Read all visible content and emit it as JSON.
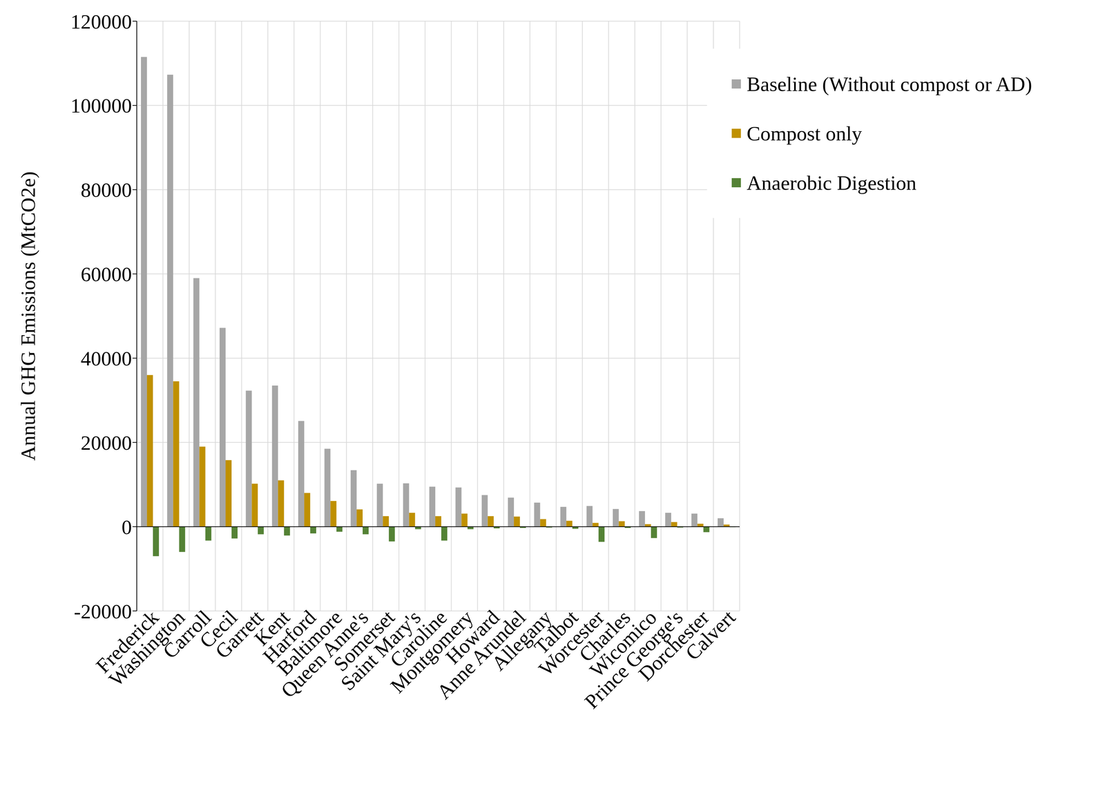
{
  "chart_data": {
    "type": "bar",
    "y_label": "Annual GHG Emissions (MtCO2e)",
    "categories": [
      "Frederick",
      "Washington",
      "Carroll",
      "Cecil",
      "Garrett",
      "Kent",
      "Harford",
      "Baltimore",
      "Queen Anne's",
      "Somerset",
      "Saint Mary's",
      "Caroline",
      "Montgomery",
      "Howard",
      "Anne Arundel",
      "Allegany",
      "Talbot",
      "Worcester",
      "Charles",
      "Wicomico",
      "Prince George's",
      "Dorchester",
      "Calvert"
    ],
    "series": [
      {
        "name": "Baseline (Without compost or AD)",
        "color": "#a6a6a6",
        "values": [
          111500,
          107300,
          59000,
          47200,
          32300,
          33500,
          25100,
          18500,
          13400,
          10200,
          10300,
          9500,
          9300,
          7500,
          6900,
          5700,
          4700,
          4900,
          4200,
          3700,
          3300,
          3100,
          2000
        ]
      },
      {
        "name": "Compost only",
        "color": "#bf9000",
        "values": [
          36000,
          34500,
          19000,
          15800,
          10200,
          11000,
          8000,
          6100,
          4100,
          2500,
          3300,
          2500,
          3100,
          2500,
          2400,
          1800,
          1400,
          900,
          1300,
          600,
          1100,
          700,
          500
        ]
      },
      {
        "name": "Anaerobic Digestion",
        "color": "#548235",
        "values": [
          -7000,
          -6000,
          -3300,
          -2800,
          -1800,
          -2100,
          -1600,
          -1200,
          -1800,
          -3500,
          -600,
          -3300,
          -600,
          -400,
          -300,
          -200,
          -500,
          -3600,
          -300,
          -2700,
          -200,
          -1300,
          -100
        ]
      }
    ],
    "ylim": [
      -20000,
      120000
    ],
    "yticks": [
      -20000,
      0,
      20000,
      40000,
      60000,
      80000,
      100000,
      120000
    ],
    "grid": true,
    "legend": "upper right"
  }
}
